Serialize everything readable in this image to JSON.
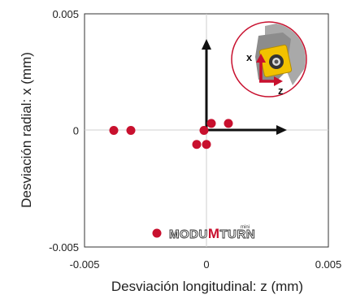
{
  "chart_data": {
    "type": "scatter",
    "title": "",
    "xlabel": "Desviación longitudinal: z (mm)",
    "ylabel": "Desviación radial: x (mm)",
    "xlim": [
      -0.005,
      0.005
    ],
    "ylim": [
      -0.005,
      0.005
    ],
    "x_ticks": [
      {
        "value": -0.005,
        "label": "-0.005"
      },
      {
        "value": 0,
        "label": "0"
      },
      {
        "value": 0.005,
        "label": "0.005"
      }
    ],
    "y_ticks": [
      {
        "value": 0.005,
        "label": "0.005"
      },
      {
        "value": 0,
        "label": "0"
      },
      {
        "value": -0.005,
        "label": "-0.005"
      }
    ],
    "grid": "zero-lines",
    "points": [
      {
        "x": -0.0038,
        "y": 0.0
      },
      {
        "x": -0.0031,
        "y": 0.0
      },
      {
        "x": -0.0001,
        "y": 0.0
      },
      {
        "x": 0.0002,
        "y": 0.0003
      },
      {
        "x": 0.0009,
        "y": 0.0003
      },
      {
        "x": -0.0004,
        "y": -0.0006
      },
      {
        "x": 0.0,
        "y": -0.0006
      }
    ],
    "marker_color": "#c8102e"
  },
  "inset": {
    "x_label": "x",
    "z_label": "z"
  },
  "logo": {
    "text_left": "MODU",
    "text_mid": "M",
    "text_right": "TURN",
    "superscript": "mini",
    "accent_color": "#c8102e"
  }
}
